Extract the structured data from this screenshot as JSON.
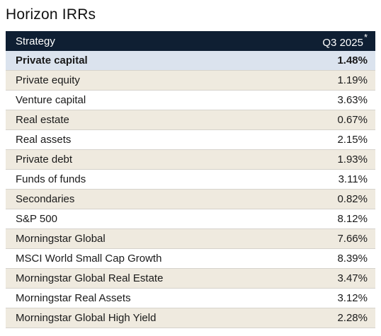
{
  "title": "Horizon IRRs",
  "table": {
    "header": {
      "strategy": "Strategy",
      "period": "Q3 2025",
      "footnote_mark": "*"
    },
    "rows": [
      {
        "label": "Private capital",
        "value": "1.48%"
      },
      {
        "label": "Private equity",
        "value": "1.19%"
      },
      {
        "label": "Venture capital",
        "value": "3.63%"
      },
      {
        "label": "Real estate",
        "value": "0.67%"
      },
      {
        "label": "Real assets",
        "value": "2.15%"
      },
      {
        "label": "Private debt",
        "value": "1.93%"
      },
      {
        "label": "Funds of funds",
        "value": "3.11%"
      },
      {
        "label": "Secondaries",
        "value": "0.82%"
      },
      {
        "label": "S&P 500",
        "value": "8.12%"
      },
      {
        "label": "Morningstar Global",
        "value": "7.66%"
      },
      {
        "label": "MSCI World Small Cap Growth",
        "value": "8.39%"
      },
      {
        "label": "Morningstar Global Real Estate",
        "value": "3.47%"
      },
      {
        "label": "Morningstar Real Assets",
        "value": "3.12%"
      },
      {
        "label": "Morningstar Global High Yield",
        "value": "2.28%"
      }
    ]
  },
  "colors": {
    "header_bg": "#0f1f33",
    "highlight_bg": "#dbe3ee",
    "stripe_bg": "#efeadf"
  }
}
